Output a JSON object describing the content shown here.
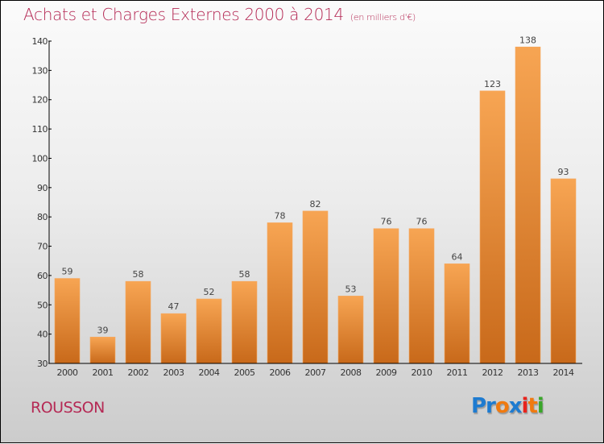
{
  "header": {
    "title": "Achats et Charges Externes 2000 à 2014",
    "subtitle": "(en milliers d'€)"
  },
  "footer": {
    "city": "ROUSSON",
    "logo": [
      {
        "text": "Pr",
        "color": "#1e7bd0"
      },
      {
        "text": "o",
        "color": "#f07a10"
      },
      {
        "text": "x",
        "color": "#1e7bd0"
      },
      {
        "text": "i",
        "color": "#e8231c"
      },
      {
        "text": "t",
        "color": "#f07a10"
      },
      {
        "text": "i",
        "color": "#3aa62a"
      }
    ]
  },
  "chart_data": {
    "type": "bar",
    "title": "Achats et Charges Externes 2000 à 2014",
    "subtitle": "(en milliers d'€)",
    "xlabel": "",
    "ylabel": "",
    "categories": [
      "2000",
      "2001",
      "2002",
      "2003",
      "2004",
      "2005",
      "2006",
      "2007",
      "2008",
      "2009",
      "2010",
      "2011",
      "2012",
      "2013",
      "2014"
    ],
    "values": [
      59,
      39,
      58,
      47,
      52,
      58,
      78,
      82,
      53,
      76,
      76,
      64,
      123,
      138,
      93
    ],
    "ylim": [
      30,
      140
    ],
    "yticks": [
      30,
      40,
      50,
      60,
      70,
      80,
      90,
      100,
      110,
      120,
      130,
      140
    ],
    "grid": false,
    "legend": "none",
    "bar_color_top": "#f7a553",
    "bar_color_bottom": "#c8691a"
  }
}
